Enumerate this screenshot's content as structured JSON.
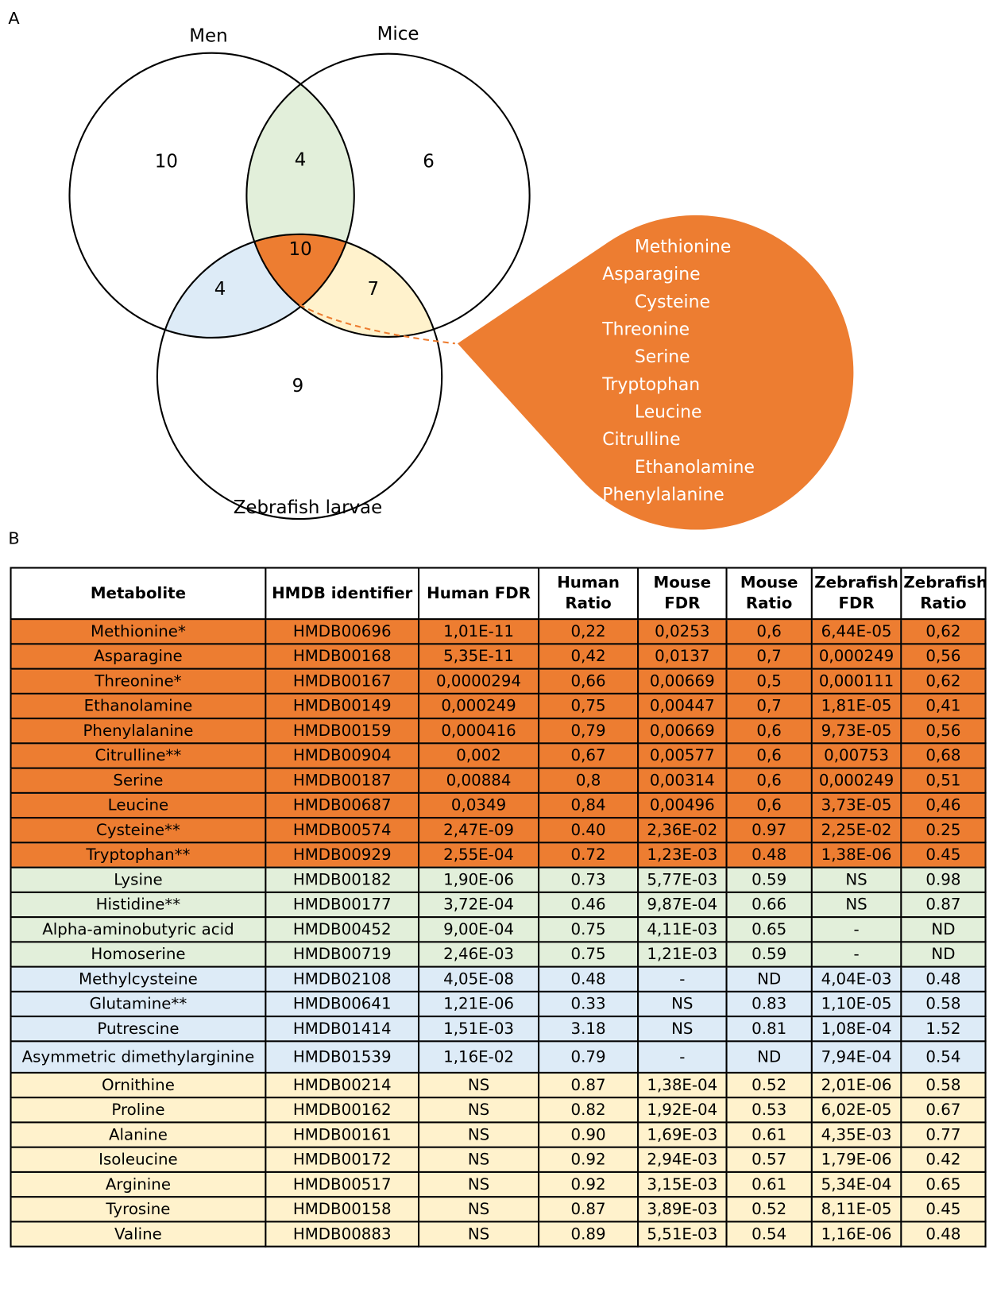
{
  "panel_a": {
    "label": "A",
    "sets": [
      {
        "label": "Men"
      },
      {
        "label": "Mice"
      },
      {
        "label": "Zebrafish larvae"
      }
    ],
    "regions": [
      {
        "count": "10",
        "color": "#ffffff"
      },
      {
        "count": "6",
        "color": "#ffffff"
      },
      {
        "count": "9",
        "color": "#ffffff"
      },
      {
        "count": "4",
        "color": "#e2efda"
      },
      {
        "count": "4",
        "color": "#ddebf7"
      },
      {
        "count": "7",
        "color": "#fff2cc"
      },
      {
        "count": "10",
        "color": "#ed7d31"
      }
    ],
    "callout": {
      "color": "#ed7d31",
      "items": [
        "Methionine",
        "Asparagine",
        "Cysteine",
        "Threonine",
        "Serine",
        "Tryptophan",
        "Leucine",
        "Citrulline",
        "Ethanolamine",
        "Phenylalanine"
      ]
    }
  },
  "panel_b": {
    "label": "B",
    "table": {
      "header": [
        "Metabolite",
        "HMDB identifier",
        "Human FDR",
        "Human Ratio",
        "Mouse FDR",
        "Mouse Ratio",
        "Zebrafish FDR",
        "Zebrafish Ratio"
      ],
      "rows": [
        {
          "color": "#ed7d31",
          "cells": [
            "Methionine*",
            "HMDB00696",
            "1,01E-11",
            "0,22",
            "0,0253",
            "0,6",
            "6,44E-05",
            "0,62"
          ]
        },
        {
          "color": "#ed7d31",
          "cells": [
            "Asparagine",
            "HMDB00168",
            "5,35E-11",
            "0,42",
            "0,0137",
            "0,7",
            "0,000249",
            "0,56"
          ]
        },
        {
          "color": "#ed7d31",
          "cells": [
            "Threonine*",
            "HMDB00167",
            "0,0000294",
            "0,66",
            "0,00669",
            "0,5",
            "0,000111",
            "0,62"
          ]
        },
        {
          "color": "#ed7d31",
          "cells": [
            "Ethanolamine",
            "HMDB00149",
            "0,000249",
            "0,75",
            "0,00447",
            "0,7",
            "1,81E-05",
            "0,41"
          ]
        },
        {
          "color": "#ed7d31",
          "cells": [
            "Phenylalanine",
            "HMDB00159",
            "0,000416",
            "0,79",
            "0,00669",
            "0,6",
            "9,73E-05",
            "0,56"
          ]
        },
        {
          "color": "#ed7d31",
          "cells": [
            "Citrulline**",
            "HMDB00904",
            "0,002",
            "0,67",
            "0,00577",
            "0,6",
            "0,00753",
            "0,68"
          ]
        },
        {
          "color": "#ed7d31",
          "cells": [
            "Serine",
            "HMDB00187",
            "0,00884",
            "0,8",
            "0,00314",
            "0,6",
            "0,000249",
            "0,51"
          ]
        },
        {
          "color": "#ed7d31",
          "cells": [
            "Leucine",
            "HMDB00687",
            "0,0349",
            "0,84",
            "0,00496",
            "0,6",
            "3,73E-05",
            "0,46"
          ]
        },
        {
          "color": "#ed7d31",
          "cells": [
            "Cysteine**",
            "HMDB00574",
            "2,47E-09",
            "0.40",
            "2,36E-02",
            "0.97",
            "2,25E-02",
            "0.25"
          ]
        },
        {
          "color": "#ed7d31",
          "cells": [
            "Tryptophan**",
            "HMDB00929",
            "2,55E-04",
            "0.72",
            "1,23E-03",
            "0.48",
            "1,38E-06",
            "0.45"
          ]
        },
        {
          "color": "#e2efda",
          "cells": [
            "Lysine",
            "HMDB00182",
            "1,90E-06",
            "0.73",
            "5,77E-03",
            "0.59",
            "NS",
            "0.98"
          ]
        },
        {
          "color": "#e2efda",
          "cells": [
            "Histidine**",
            "HMDB00177",
            "3,72E-04",
            "0.46",
            "9,87E-04",
            "0.66",
            "NS",
            "0.87"
          ]
        },
        {
          "color": "#e2efda",
          "cells": [
            "Alpha-aminobutyric acid",
            "HMDB00452",
            "9,00E-04",
            "0.75",
            "4,11E-03",
            "0.65",
            "-",
            "ND"
          ]
        },
        {
          "color": "#e2efda",
          "cells": [
            "Homoserine",
            "HMDB00719",
            "2,46E-03",
            "0.75",
            "1,21E-03",
            "0.59",
            "-",
            "ND"
          ]
        },
        {
          "color": "#ddebf7",
          "cells": [
            "Methylcysteine",
            "HMDB02108",
            "4,05E-08",
            "0.48",
            "-",
            "ND",
            "4,04E-03",
            "0.48"
          ]
        },
        {
          "color": "#ddebf7",
          "cells": [
            "Glutamine**",
            "HMDB00641",
            "1,21E-06",
            "0.33",
            "NS",
            "0.83",
            "1,10E-05",
            "0.58"
          ]
        },
        {
          "color": "#ddebf7",
          "cells": [
            "Putrescine",
            "HMDB01414",
            "1,51E-03",
            "3.18",
            "NS",
            "0.81",
            "1,08E-04",
            "1.52"
          ]
        },
        {
          "color": "#ddebf7",
          "cells": [
            "Asymmetric dimethylarginine",
            "HMDB01539",
            "1,16E-02",
            "0.79",
            "-",
            "ND",
            "7,94E-04",
            "0.54"
          ]
        },
        {
          "color": "#fff2cc",
          "cells": [
            "Ornithine",
            "HMDB00214",
            "NS",
            "0.87",
            "1,38E-04",
            "0.52",
            "2,01E-06",
            "0.58"
          ]
        },
        {
          "color": "#fff2cc",
          "cells": [
            "Proline",
            "HMDB00162",
            "NS",
            "0.82",
            "1,92E-04",
            "0.53",
            "6,02E-05",
            "0.67"
          ]
        },
        {
          "color": "#fff2cc",
          "cells": [
            "Alanine",
            "HMDB00161",
            "NS",
            "0.90",
            "1,69E-03",
            "0.61",
            "4,35E-03",
            "0.77"
          ]
        },
        {
          "color": "#fff2cc",
          "cells": [
            "Isoleucine",
            "HMDB00172",
            "NS",
            "0.92",
            "2,94E-03",
            "0.57",
            "1,79E-06",
            "0.42"
          ]
        },
        {
          "color": "#fff2cc",
          "cells": [
            "Arginine",
            "HMDB00517",
            "NS",
            "0.92",
            "3,15E-03",
            "0.61",
            "5,34E-04",
            "0.65"
          ]
        },
        {
          "color": "#fff2cc",
          "cells": [
            "Tyrosine",
            "HMDB00158",
            "NS",
            "0.87",
            "3,89E-03",
            "0.52",
            "8,11E-05",
            "0.45"
          ]
        },
        {
          "color": "#fff2cc",
          "cells": [
            "Valine",
            "HMDB00883",
            "NS",
            "0.89",
            "5,51E-03",
            "0.54",
            "1,16E-06",
            "0.48"
          ]
        }
      ]
    }
  }
}
